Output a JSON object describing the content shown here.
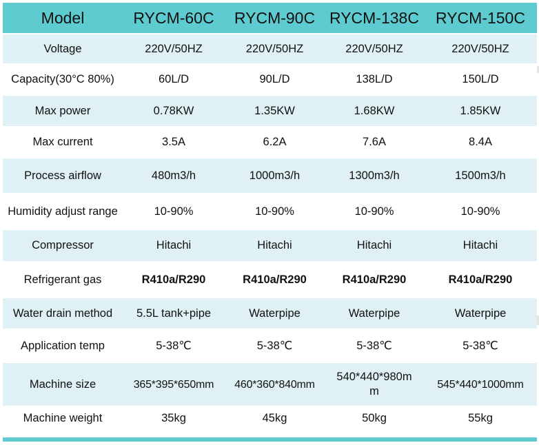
{
  "table": {
    "header": [
      "Model",
      "RYCM-60C",
      "RYCM-90C",
      "RYCM-138C",
      "RYCM-150C"
    ],
    "rows": [
      {
        "label": "Voltage",
        "values": [
          "220V/50HZ",
          "220V/50HZ",
          "220V/50HZ",
          "220V/50HZ"
        ]
      },
      {
        "label": "Capacity(30°C 80%)",
        "values": [
          "60L/D",
          "90L/D",
          "138L/D",
          "150L/D"
        ]
      },
      {
        "label": "Max power",
        "values": [
          "0.78KW",
          "1.35KW",
          "1.68KW",
          "1.85KW"
        ]
      },
      {
        "label": "Max current",
        "values": [
          "3.5A",
          "6.2A",
          "7.6A",
          "8.4A"
        ]
      },
      {
        "label": "Process airflow",
        "values": [
          "480m3/h",
          "1000m3/h",
          "1300m3/h",
          "1500m3/h"
        ]
      },
      {
        "label": "Humidity adjust range",
        "values": [
          "10-90%",
          "10-90%",
          "10-90%",
          "10-90%"
        ]
      },
      {
        "label": "Compressor",
        "values": [
          "Hitachi",
          "Hitachi",
          "Hitachi",
          "Hitachi"
        ]
      },
      {
        "label": "Refrigerant gas",
        "values": [
          "R410a/R290",
          "R410a/R290",
          "R410a/R290",
          "R410a/R290"
        ]
      },
      {
        "label": "Water drain method",
        "values": [
          "5.5L tank+pipe",
          "Waterpipe",
          "Waterpipe",
          "Waterpipe"
        ]
      },
      {
        "label": "Application temp",
        "values": [
          "5-38℃",
          "5-38℃",
          "5-38℃",
          "5-38℃"
        ]
      },
      {
        "label": "Machine size",
        "values": [
          "365*395*650mm",
          "460*360*840mm",
          "540*440*980mm",
          "545*440*1000mm"
        ]
      },
      {
        "label": "Machine weight",
        "values": [
          "35kg",
          "45kg",
          "50kg",
          "55kg"
        ]
      }
    ]
  },
  "colors": {
    "header_bg": "#5ecbd0",
    "alt_row_bg": "#dff1f4",
    "plain_row_bg": "#ffffff"
  }
}
